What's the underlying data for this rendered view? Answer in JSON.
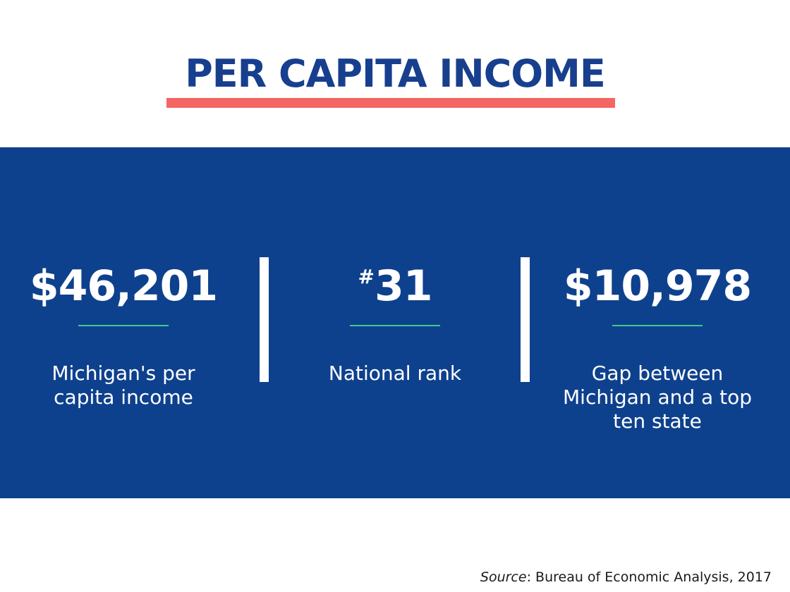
{
  "title": "PER CAPITA INCOME",
  "colors": {
    "title_text": "#173f8e",
    "title_underline": "#f46663",
    "band_background": "#0e418d",
    "stat_rule": "#3ec98a",
    "text_on_band": "#ffffff"
  },
  "stats": [
    {
      "prefix": "",
      "value": "$46,201",
      "label": "Michigan's per\ncapita income"
    },
    {
      "prefix": "#",
      "value": "31",
      "label": "National rank"
    },
    {
      "prefix": "",
      "value": "$10,978",
      "label": "Gap between\nMichigan and a top\nten state"
    }
  ],
  "source": {
    "label": "Source",
    "separator": ": ",
    "text": "Bureau of Economic Analysis, 2017"
  }
}
